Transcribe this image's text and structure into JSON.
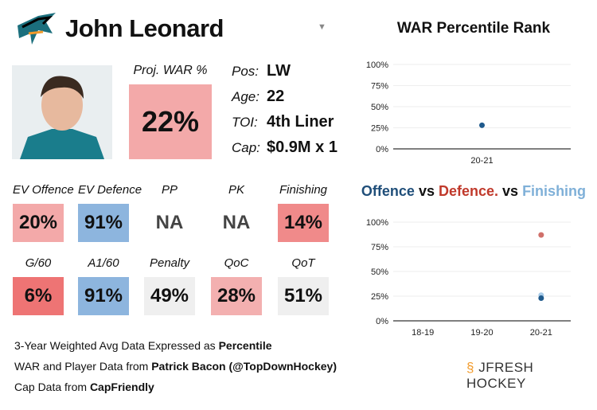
{
  "player": {
    "name": "John Leonard",
    "proj_war_label": "Proj. WAR %",
    "proj_war": "22%"
  },
  "info": [
    {
      "k": "Pos:",
      "v": "LW"
    },
    {
      "k": "Age:",
      "v": "22"
    },
    {
      "k": "TOI:",
      "v": "4th Liner"
    },
    {
      "k": "Cap:",
      "v": "$0.9M x 1"
    }
  ],
  "stats": [
    {
      "label": "EV Offence",
      "value": "20%",
      "color": "#f3a9a9"
    },
    {
      "label": "EV Defence",
      "value": "91%",
      "color": "#8db5de"
    },
    {
      "label": "PP",
      "value": "NA",
      "color": "#ffffff"
    },
    {
      "label": "PK",
      "value": "NA",
      "color": "#ffffff"
    },
    {
      "label": "Finishing",
      "value": "14%",
      "color": "#f08a8a"
    },
    {
      "label": "G/60",
      "value": "6%",
      "color": "#ee7474"
    },
    {
      "label": "A1/60",
      "value": "91%",
      "color": "#8db5de"
    },
    {
      "label": "Penalty",
      "value": "49%",
      "color": "#efefef"
    },
    {
      "label": "QoC",
      "value": "28%",
      "color": "#f3b0b0"
    },
    {
      "label": "QoT",
      "value": "51%",
      "color": "#efefef"
    }
  ],
  "footer": {
    "l1a": "3-Year Weighted Avg Data Expressed as ",
    "l1b": "Percentile",
    "l2a": "WAR and Player Data from ",
    "l2b": "Patrick Bacon (@TopDownHockey)",
    "l3a": "Cap Data from ",
    "l3b": "CapFriendly",
    "brand": "JFRESH HOCKEY"
  },
  "chart_data": [
    {
      "type": "scatter",
      "title": "WAR Percentile Rank",
      "categories": [
        "20-21"
      ],
      "series": [
        {
          "values": [
            28
          ],
          "color": "#1f5a8c"
        }
      ],
      "ylim": [
        0,
        100
      ],
      "yticks": [
        "0%",
        "25%",
        "50%",
        "75%",
        "100%"
      ],
      "grid": true
    },
    {
      "type": "scatter",
      "title": "Offence vs Defence. vs Finishing",
      "title_parts": [
        {
          "t": "Offence",
          "c": "#1f4e79"
        },
        {
          "t": " vs ",
          "c": "#111"
        },
        {
          "t": "Defence.",
          "c": "#c0392b"
        },
        {
          "t": " vs ",
          "c": "#111"
        },
        {
          "t": "Finishing",
          "c": "#7fb0d8"
        }
      ],
      "categories": [
        "18-19",
        "19-20",
        "20-21"
      ],
      "series": [
        {
          "name": "Offence",
          "values": [
            null,
            null,
            23
          ],
          "color": "#1f5a8c"
        },
        {
          "name": "Defence.",
          "values": [
            null,
            null,
            87
          ],
          "color": "#d0706a"
        },
        {
          "name": "Finishing",
          "values": [
            null,
            null,
            26
          ],
          "color": "#a8cbe8"
        }
      ],
      "ylim": [
        0,
        100
      ],
      "yticks": [
        "0%",
        "25%",
        "50%",
        "75%",
        "100%"
      ],
      "grid": true
    }
  ]
}
